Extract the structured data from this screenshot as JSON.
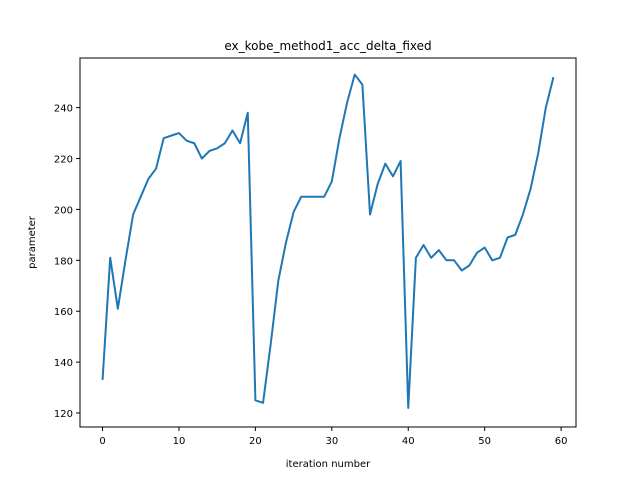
{
  "chart_data": {
    "type": "line",
    "title": "ex_kobe_method1_acc_delta_fixed",
    "xlabel": "iteration number",
    "ylabel": "parameter",
    "xlim": [
      -2.95,
      61.95
    ],
    "ylim": [
      114.5,
      259.5
    ],
    "xticks": [
      0,
      10,
      20,
      30,
      40,
      50,
      60
    ],
    "yticks": [
      120,
      140,
      160,
      180,
      200,
      220,
      240
    ],
    "grid": false,
    "line_color": "#1f77b4",
    "series": [
      {
        "x": [
          0,
          1,
          2,
          3,
          4,
          5,
          6,
          7,
          8,
          9,
          10,
          11,
          12,
          13,
          14,
          15,
          16,
          17,
          18,
          19,
          20,
          21,
          22,
          23,
          24,
          25,
          26,
          27,
          28,
          29,
          30,
          31,
          32,
          33,
          34,
          35,
          36,
          37,
          38,
          39,
          40,
          41,
          42,
          43,
          44,
          45,
          46,
          47,
          48,
          49,
          50,
          51,
          52,
          53,
          54,
          55,
          56,
          57,
          58,
          59
        ],
        "values": [
          133,
          181,
          161,
          180,
          198,
          205,
          212,
          216,
          228,
          229,
          230,
          227,
          226,
          220,
          223,
          224,
          226,
          231,
          226,
          238,
          125,
          124,
          147,
          172,
          187,
          199,
          205,
          205,
          205,
          205,
          211,
          228,
          242,
          253,
          249,
          198,
          210,
          218,
          213,
          219,
          122,
          181,
          186,
          181,
          184,
          180,
          180,
          176,
          178,
          183,
          185,
          180,
          181,
          189,
          190,
          198,
          208,
          222,
          240,
          252
        ]
      }
    ]
  }
}
